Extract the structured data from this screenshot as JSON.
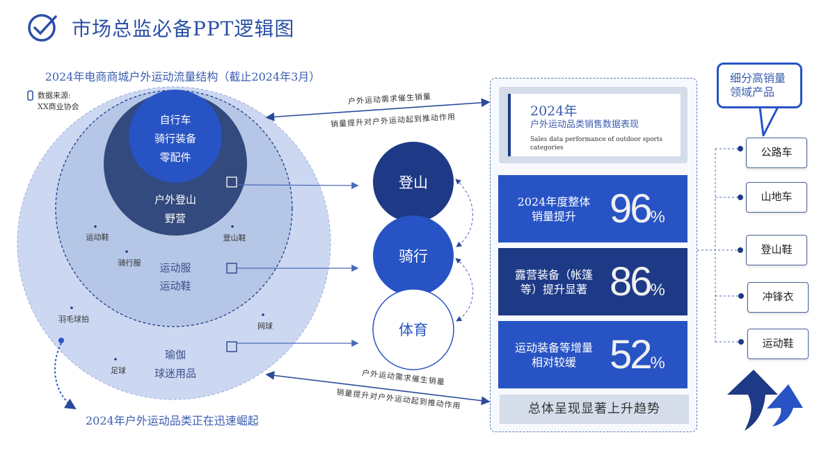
{
  "title": "市场总监必备PPT逻辑图",
  "left": {
    "subtitle": "2024年电商商城户外运动流量结构（截止2024年3月）",
    "source_line1": "数据来源:",
    "source_line2": "XX商业协会",
    "inner_circle": [
      "自行车",
      "骑行装备",
      "零配件"
    ],
    "dark_circle": [
      "户外登山",
      "野营"
    ],
    "mid_ring": [
      "运动服",
      "运动鞋"
    ],
    "outer_ring": [
      "瑜伽",
      "球迷用品"
    ],
    "tags": [
      "运动鞋",
      "登山鞋",
      "骑行服",
      "羽毛球拍",
      "网球",
      "足球"
    ],
    "rise_text": "2024年户外运动品类正在迅速崛起"
  },
  "center": {
    "circles": [
      "登山",
      "骑行",
      "体育"
    ],
    "top_arrow": {
      "upper": "户外运动需求催生销量",
      "lower": "销量提升对户外运动起到推动作用"
    },
    "bottom_arrow": {
      "upper": "户外运动需求催生销量",
      "lower": "销量提升对户外运动起到推动作用"
    }
  },
  "panel": {
    "header_year": "2024年",
    "header_cn": "户外运动品类销售数据表现",
    "header_en": "Sales data performance of outdoor sports categories",
    "stats": [
      {
        "label_1": "2024年度整体",
        "label_2": "销量提升",
        "value": "96",
        "unit": "%"
      },
      {
        "label_1": "露营装备（帐篷",
        "label_2": "等）提升显著",
        "value": "86",
        "unit": "%"
      },
      {
        "label_1": "运动装备等增量",
        "label_2": "相对较缓",
        "value": "52",
        "unit": "%"
      }
    ],
    "footer": "总体呈现显著上升趋势"
  },
  "right": {
    "bubble_1": "细分高销量",
    "bubble_2": "领域产品",
    "products": [
      "公路车",
      "山地车",
      "登山鞋",
      "冲锋衣",
      "运动鞋"
    ]
  },
  "colors": {
    "primary": "#2753c4",
    "dark": "#1e3a86",
    "slate": "#334a7e",
    "light": "#ccd8f2",
    "text_blue": "#3a5cb0"
  }
}
